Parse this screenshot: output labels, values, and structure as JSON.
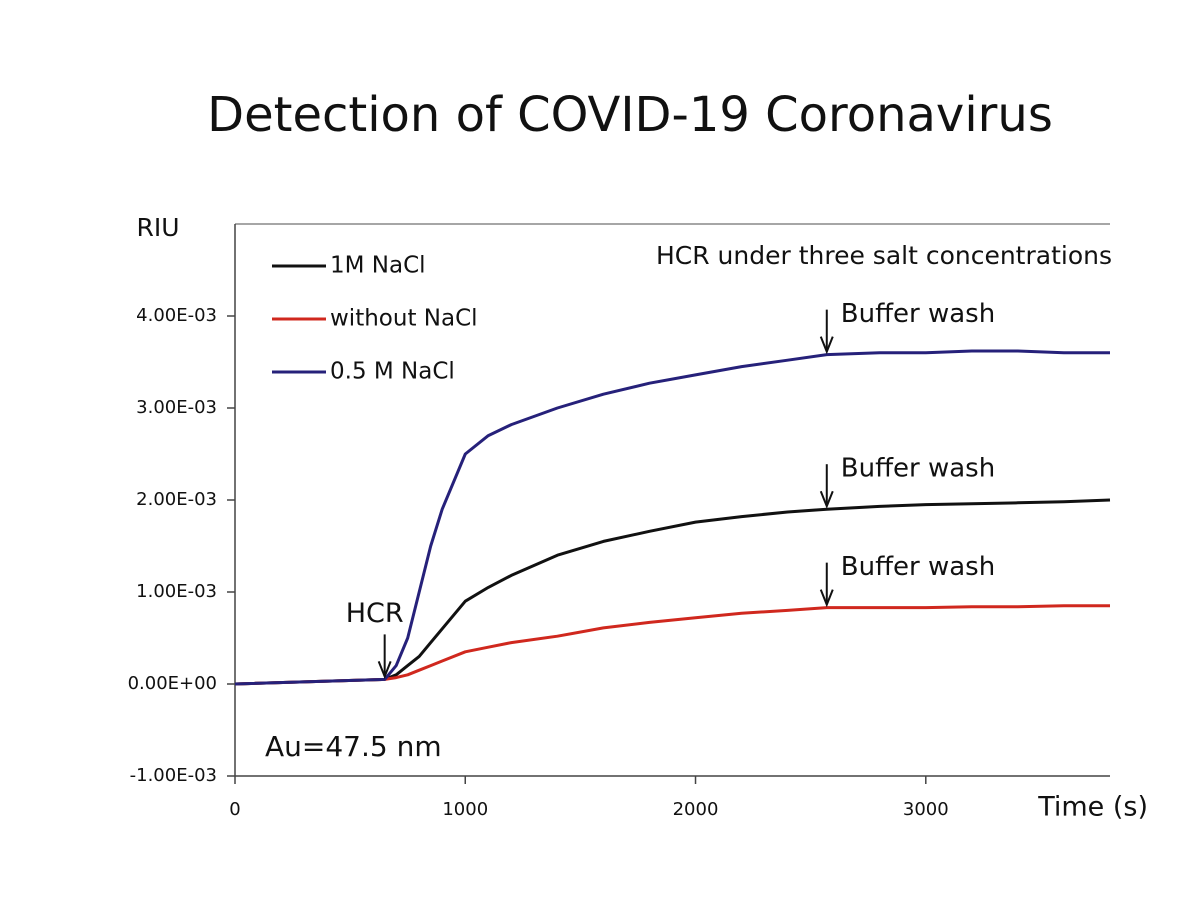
{
  "chart_data": {
    "type": "line",
    "title": "Detection of COVID-19 Coronavirus",
    "subtitle": "HCR under three salt concentrations",
    "y_label": "RIU",
    "x_label": "Time (s)",
    "x": [
      0,
      650,
      700,
      750,
      800,
      850,
      900,
      1000,
      1100,
      1200,
      1400,
      1600,
      1800,
      2000,
      2200,
      2400,
      2570,
      2800,
      3000,
      3200,
      3400,
      3600,
      3800
    ],
    "series": [
      {
        "name": "1M NaCl",
        "color": "#111111",
        "values": [
          0,
          5e-05,
          0.0001,
          0.0002,
          0.0003,
          0.00045,
          0.0006,
          0.0009,
          0.00105,
          0.00118,
          0.0014,
          0.00155,
          0.00166,
          0.00176,
          0.00182,
          0.00187,
          0.0019,
          0.00193,
          0.00195,
          0.00196,
          0.00197,
          0.00198,
          0.002
        ]
      },
      {
        "name": "without NaCl",
        "color": "#d0281e",
        "values": [
          0,
          5e-05,
          7e-05,
          0.0001,
          0.00015,
          0.0002,
          0.00025,
          0.00035,
          0.0004,
          0.00045,
          0.00052,
          0.00061,
          0.00067,
          0.00072,
          0.00077,
          0.0008,
          0.00083,
          0.00083,
          0.00083,
          0.00084,
          0.00084,
          0.00085,
          0.00085
        ]
      },
      {
        "name": "0.5 M NaCl",
        "color": "#26217a",
        "values": [
          0,
          5e-05,
          0.0002,
          0.0005,
          0.001,
          0.0015,
          0.0019,
          0.0025,
          0.0027,
          0.00282,
          0.003,
          0.00315,
          0.00327,
          0.00336,
          0.00345,
          0.00352,
          0.00358,
          0.0036,
          0.0036,
          0.00362,
          0.00362,
          0.0036,
          0.0036
        ]
      }
    ],
    "xlim": [
      0,
      3800
    ],
    "ylim": [
      -0.001,
      0.005
    ],
    "xticks": [
      0,
      1000,
      2000,
      3000
    ],
    "yticks": [
      {
        "value": -0.001,
        "label": "-1.00E-03"
      },
      {
        "value": 0,
        "label": "0.00E+00"
      },
      {
        "value": 0.001,
        "label": "1.00E-03"
      },
      {
        "value": 0.002,
        "label": "2.00E-03"
      },
      {
        "value": 0.003,
        "label": "3.00E-03"
      },
      {
        "value": 0.004,
        "label": "4.00E-03"
      }
    ],
    "annotations": [
      {
        "text": "HCR",
        "x": 650,
        "y": 5e-05
      },
      {
        "text": "Buffer wash",
        "x": 2570,
        "y": 0.00358
      },
      {
        "text": "Buffer wash",
        "x": 2570,
        "y": 0.0019
      },
      {
        "text": "Buffer wash",
        "x": 2570,
        "y": 0.00083
      }
    ],
    "note": "Au=47.5 nm",
    "legend": "upper left",
    "grid": false
  }
}
